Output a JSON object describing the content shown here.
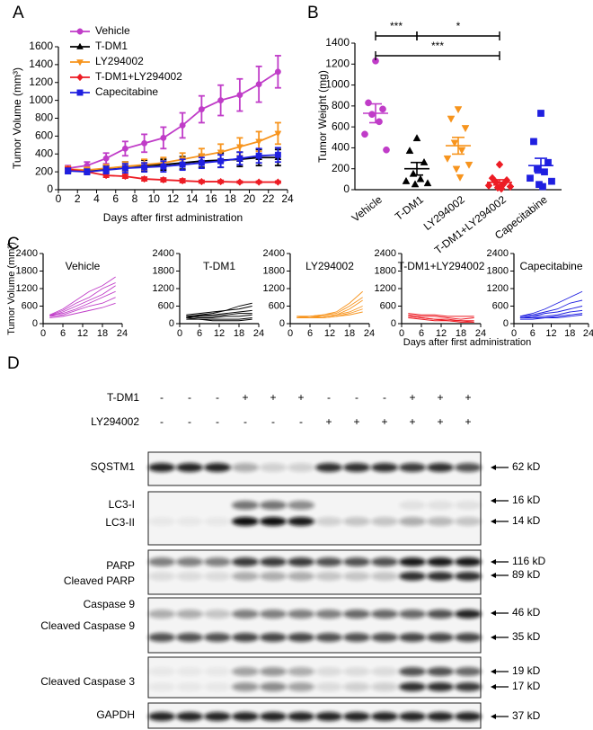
{
  "panel_labels": [
    "A",
    "B",
    "C",
    "D"
  ],
  "chart_data": [
    {
      "type": "line",
      "ylabel": "Tumor Volume (mm³)",
      "xlabel": "Days after first administration",
      "legend": "upper left",
      "x": [
        1,
        3,
        5,
        7,
        9,
        11,
        13,
        15,
        17,
        19,
        21,
        23
      ],
      "series": [
        {
          "name": "Vehicle",
          "color": "#c03cc8",
          "marker": "circle",
          "values": [
            240,
            270,
            350,
            460,
            520,
            580,
            720,
            900,
            1000,
            1060,
            1180,
            1320
          ],
          "errors": [
            30,
            40,
            60,
            80,
            100,
            120,
            140,
            150,
            170,
            180,
            200,
            180
          ]
        },
        {
          "name": "T-DM1",
          "color": "#000000",
          "marker": "triangle",
          "values": [
            220,
            210,
            230,
            260,
            270,
            280,
            300,
            320,
            330,
            340,
            360,
            360
          ],
          "errors": [
            30,
            30,
            40,
            50,
            60,
            60,
            70,
            70,
            80,
            80,
            90,
            90
          ]
        },
        {
          "name": "LY294002",
          "color": "#f7941d",
          "marker": "triangle-down",
          "values": [
            230,
            220,
            240,
            260,
            280,
            300,
            340,
            380,
            420,
            480,
            540,
            630
          ],
          "errors": [
            30,
            30,
            40,
            50,
            60,
            60,
            70,
            80,
            90,
            100,
            110,
            120
          ]
        },
        {
          "name": "T-DM1+LY294002",
          "color": "#ed1c24",
          "marker": "diamond",
          "values": [
            230,
            200,
            160,
            150,
            120,
            110,
            100,
            90,
            90,
            85,
            85,
            85
          ],
          "errors": [
            20,
            20,
            20,
            20,
            20,
            20,
            20,
            15,
            15,
            10,
            10,
            10
          ]
        },
        {
          "name": "Capecitabine",
          "color": "#1f1fe0",
          "marker": "square",
          "values": [
            210,
            200,
            220,
            240,
            250,
            260,
            280,
            300,
            320,
            350,
            380,
            390
          ],
          "errors": [
            30,
            30,
            40,
            50,
            50,
            60,
            60,
            60,
            70,
            70,
            80,
            80
          ]
        }
      ],
      "xlim": [
        0,
        24
      ],
      "xticks": [
        0,
        2,
        4,
        6,
        8,
        10,
        12,
        14,
        16,
        18,
        20,
        22,
        24
      ],
      "ylim": [
        0,
        1600
      ],
      "yticks": [
        0,
        200,
        400,
        600,
        800,
        1000,
        1200,
        1400,
        1600
      ]
    },
    {
      "type": "dot",
      "ylabel": "Tumor Weight (mg)",
      "categories": [
        "Vehicle",
        "T-DM1",
        "LY294002",
        "T-DM1+LY294002",
        "Capecitabine"
      ],
      "colors": [
        "#c03cc8",
        "#000000",
        "#f7941d",
        "#ed1c24",
        "#1f1fe0"
      ],
      "markers": [
        "circle",
        "triangle",
        "triangle-down",
        "diamond",
        "square"
      ],
      "points": [
        [
          1230,
          830,
          770,
          720,
          650,
          530,
          380
        ],
        [
          490,
          370,
          260,
          150,
          100,
          80,
          60,
          50
        ],
        [
          770,
          680,
          590,
          450,
          380,
          300,
          240,
          200,
          120
        ],
        [
          240,
          110,
          90,
          70,
          50,
          40,
          30,
          20,
          10
        ],
        [
          730,
          460,
          260,
          200,
          170,
          110,
          80,
          50,
          30
        ]
      ],
      "means": [
        730,
        200,
        420,
        70,
        230
      ],
      "sems": [
        90,
        60,
        80,
        25,
        70
      ],
      "annotations": [
        {
          "text": "***",
          "between": [
            0,
            1
          ]
        },
        {
          "text": "*",
          "between": [
            1,
            3
          ]
        },
        {
          "text": "***",
          "between": [
            0,
            3
          ]
        }
      ],
      "ylim": [
        0,
        1400
      ],
      "yticks": [
        0,
        200,
        400,
        600,
        800,
        1000,
        1200,
        1400
      ]
    },
    {
      "type": "line",
      "title": "Vehicle",
      "ylabel": "Tumor Volume (mm³)",
      "color": "#c03cc8",
      "x": [
        2,
        6,
        10,
        14,
        18,
        22
      ],
      "series": [
        {
          "values": [
            300,
            500,
            800,
            1100,
            1300,
            1600
          ]
        },
        {
          "values": [
            280,
            450,
            700,
            900,
            1200,
            1400
          ]
        },
        {
          "values": [
            250,
            400,
            600,
            800,
            1000,
            1300
          ]
        },
        {
          "values": [
            300,
            350,
            500,
            700,
            900,
            1100
          ]
        },
        {
          "values": [
            250,
            300,
            450,
            600,
            700,
            900
          ]
        },
        {
          "values": [
            200,
            250,
            350,
            450,
            550,
            700
          ]
        }
      ],
      "xlim": [
        0,
        24
      ],
      "xticks": [
        0,
        6,
        12,
        18,
        24
      ],
      "ylim": [
        0,
        2400
      ],
      "yticks": [
        0,
        600,
        1200,
        1800,
        2400
      ]
    },
    {
      "type": "line",
      "title": "T-DM1",
      "color": "#000000",
      "x": [
        2,
        6,
        10,
        14,
        18,
        22
      ],
      "series": [
        {
          "values": [
            250,
            300,
            350,
            450,
            600,
            700
          ]
        },
        {
          "values": [
            300,
            350,
            400,
            450,
            500,
            600
          ]
        },
        {
          "values": [
            250,
            280,
            300,
            350,
            400,
            450
          ]
        },
        {
          "values": [
            200,
            250,
            250,
            300,
            350,
            350
          ]
        },
        {
          "values": [
            250,
            200,
            200,
            250,
            250,
            300
          ]
        },
        {
          "values": [
            200,
            150,
            150,
            150,
            150,
            200
          ]
        },
        {
          "values": [
            150,
            150,
            100,
            100,
            100,
            150
          ]
        }
      ],
      "xlim": [
        0,
        24
      ],
      "xticks": [
        0,
        6,
        12,
        18,
        24
      ],
      "ylim": [
        0,
        2400
      ],
      "yticks": [
        0,
        600,
        1200,
        1800,
        2400
      ]
    },
    {
      "type": "line",
      "title": "LY294002",
      "color": "#f7941d",
      "x": [
        2,
        6,
        10,
        14,
        18,
        22
      ],
      "series": [
        {
          "values": [
            250,
            250,
            300,
            400,
            700,
            1100
          ]
        },
        {
          "values": [
            250,
            250,
            300,
            350,
            600,
            900
          ]
        },
        {
          "values": [
            200,
            250,
            250,
            300,
            500,
            800
          ]
        },
        {
          "values": [
            200,
            200,
            250,
            300,
            400,
            600
          ]
        },
        {
          "values": [
            250,
            200,
            200,
            250,
            350,
            500
          ]
        },
        {
          "values": [
            200,
            200,
            200,
            250,
            300,
            400
          ]
        }
      ],
      "xlim": [
        0,
        24
      ],
      "xticks": [
        0,
        6,
        12,
        18,
        24
      ],
      "ylim": [
        0,
        2400
      ],
      "yticks": [
        0,
        600,
        1200,
        1800,
        2400
      ]
    },
    {
      "type": "line",
      "title": "T-DM1+LY294002",
      "color": "#ed1c24",
      "x": [
        2,
        6,
        10,
        14,
        18,
        22
      ],
      "series": [
        {
          "values": [
            350,
            300,
            300,
            250,
            250,
            250
          ]
        },
        {
          "values": [
            300,
            250,
            250,
            200,
            150,
            200
          ]
        },
        {
          "values": [
            250,
            200,
            150,
            150,
            100,
            100
          ]
        },
        {
          "values": [
            200,
            150,
            100,
            100,
            100,
            50
          ]
        },
        {
          "values": [
            250,
            200,
            150,
            100,
            50,
            50
          ]
        }
      ],
      "xlim": [
        0,
        24
      ],
      "xticks": [
        0,
        6,
        12,
        18,
        24
      ],
      "ylim": [
        0,
        2400
      ],
      "yticks": [
        0,
        600,
        1200,
        1800,
        2400
      ]
    },
    {
      "type": "line",
      "title": "Capecitabine",
      "xlabel": "Days after first administration",
      "color": "#1f1fe0",
      "x": [
        2,
        6,
        10,
        14,
        18,
        22
      ],
      "series": [
        {
          "values": [
            250,
            350,
            500,
            700,
            900,
            1100
          ]
        },
        {
          "values": [
            250,
            300,
            400,
            500,
            700,
            800
          ]
        },
        {
          "values": [
            200,
            250,
            350,
            400,
            500,
            600
          ]
        },
        {
          "values": [
            200,
            250,
            250,
            300,
            400,
            450
          ]
        },
        {
          "values": [
            200,
            200,
            200,
            250,
            300,
            350
          ]
        },
        {
          "values": [
            150,
            150,
            200,
            200,
            250,
            300
          ]
        }
      ],
      "xlim": [
        0,
        24
      ],
      "xticks": [
        0,
        6,
        12,
        18,
        24
      ],
      "ylim": [
        0,
        2400
      ],
      "yticks": [
        0,
        600,
        1200,
        1800,
        2400
      ]
    }
  ],
  "blot": {
    "treatments": [
      {
        "label": "T-DM1",
        "signs": [
          "-",
          "-",
          "-",
          "+",
          "+",
          "+",
          "-",
          "-",
          "-",
          "+",
          "+",
          "+"
        ]
      },
      {
        "label": "LY294002",
        "signs": [
          "-",
          "-",
          "-",
          "-",
          "-",
          "-",
          "+",
          "+",
          "+",
          "+",
          "+",
          "+"
        ]
      }
    ],
    "panels": [
      {
        "proteins": [
          "SQSTM1"
        ],
        "sizes": [
          "62 kD"
        ]
      },
      {
        "proteins": [
          "LC3-I",
          "LC3-II"
        ],
        "sizes": [
          "16 kD",
          "14 kD"
        ]
      },
      {
        "proteins": [
          "PARP",
          "Cleaved PARP"
        ],
        "sizes": [
          "116 kD",
          "89 kD"
        ]
      },
      {
        "proteins": [
          "Caspase 9",
          "Cleaved Caspase 9"
        ],
        "sizes": [
          "46 kD",
          "35 kD"
        ]
      },
      {
        "proteins": [
          "Cleaved Caspase 3"
        ],
        "sizes": [
          "19 kD",
          "17 kD"
        ]
      },
      {
        "proteins": [
          "GAPDH"
        ],
        "sizes": [
          "37 kD"
        ]
      }
    ]
  }
}
